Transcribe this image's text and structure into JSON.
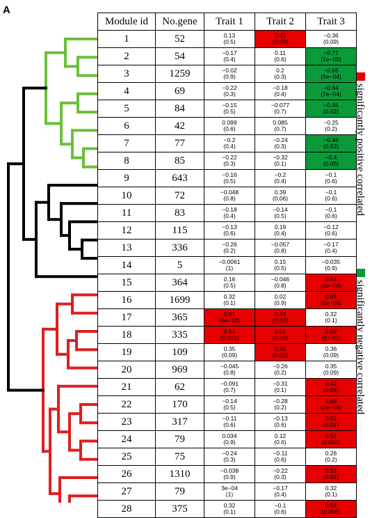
{
  "panel_label": "A",
  "colors": {
    "positive": "#e60000",
    "negative": "#0a9a3a",
    "cluster_green": "#6cbf3a",
    "cluster_black": "#000000",
    "cluster_red": "#e01e1e"
  },
  "headers": {
    "module_id": "Module id",
    "num_gene": "No.gene",
    "trait1": "Trait 1",
    "trait2": "Trait 2",
    "trait3": "Trait 3"
  },
  "legend": {
    "positive": "significantly positive correlated",
    "negative": "significantly negative correlated"
  },
  "rows": [
    {
      "id": "1",
      "genes": "52",
      "t1": {
        "c": "0.13",
        "p": "(0.5)",
        "sig": ""
      },
      "t2": {
        "c": "0.43",
        "p": "(0.04)",
        "sig": "pos"
      },
      "t3": {
        "c": "−0.36",
        "p": "(0.09)",
        "sig": ""
      }
    },
    {
      "id": "2",
      "genes": "54",
      "t1": {
        "c": "−0.17",
        "p": "(0.4)",
        "sig": ""
      },
      "t2": {
        "c": "0.11",
        "p": "(0.6)",
        "sig": ""
      },
      "t3": {
        "c": "−0.77",
        "p": "(1e−05)",
        "sig": "neg"
      }
    },
    {
      "id": "3",
      "genes": "1259",
      "t1": {
        "c": "−0.02",
        "p": "(0.9)",
        "sig": ""
      },
      "t2": {
        "c": "0.2",
        "p": "(0.3)",
        "sig": ""
      },
      "t3": {
        "c": "−0.65",
        "p": "(5e−04)",
        "sig": "neg"
      }
    },
    {
      "id": "4",
      "genes": "69",
      "t1": {
        "c": "−0.22",
        "p": "(0.3)",
        "sig": ""
      },
      "t2": {
        "c": "−0.18",
        "p": "(0.4)",
        "sig": ""
      },
      "t3": {
        "c": "−0.64",
        "p": "(7e−04)",
        "sig": "neg"
      }
    },
    {
      "id": "5",
      "genes": "84",
      "t1": {
        "c": "−0.15",
        "p": "(0.5)",
        "sig": ""
      },
      "t2": {
        "c": "−0.077",
        "p": "(0.7)",
        "sig": ""
      },
      "t3": {
        "c": "−0.46",
        "p": "(0.02)",
        "sig": "neg"
      }
    },
    {
      "id": "6",
      "genes": "42",
      "t1": {
        "c": "0.099",
        "p": "(0.6)",
        "sig": ""
      },
      "t2": {
        "c": "0.085",
        "p": "(0.7)",
        "sig": ""
      },
      "t3": {
        "c": "−0.25",
        "p": "(0.2)",
        "sig": ""
      }
    },
    {
      "id": "7",
      "genes": "77",
      "t1": {
        "c": "−0.2",
        "p": "(0.4)",
        "sig": ""
      },
      "t2": {
        "c": "−0.24",
        "p": "(0.3)",
        "sig": ""
      },
      "t3": {
        "c": "−0.46",
        "p": "(0.02)",
        "sig": "neg"
      }
    },
    {
      "id": "8",
      "genes": "85",
      "t1": {
        "c": "−0.22",
        "p": "(0.3)",
        "sig": ""
      },
      "t2": {
        "c": "−0.32",
        "p": "(0.1)",
        "sig": ""
      },
      "t3": {
        "c": "−0.4",
        "p": "(0.05)",
        "sig": "neg"
      }
    },
    {
      "id": "9",
      "genes": "643",
      "t1": {
        "c": "−0.16",
        "p": "(0.5)",
        "sig": ""
      },
      "t2": {
        "c": "−0.2",
        "p": "(0.4)",
        "sig": ""
      },
      "t3": {
        "c": "−0.1",
        "p": "(0.6)",
        "sig": ""
      }
    },
    {
      "id": "10",
      "genes": "72",
      "t1": {
        "c": "−0.048",
        "p": "(0.8)",
        "sig": ""
      },
      "t2": {
        "c": "0.39",
        "p": "(0.06)",
        "sig": ""
      },
      "t3": {
        "c": "−0.1",
        "p": "(0.6)",
        "sig": ""
      }
    },
    {
      "id": "11",
      "genes": "83",
      "t1": {
        "c": "−0.18",
        "p": "(0.4)",
        "sig": ""
      },
      "t2": {
        "c": "−0.14",
        "p": "(0.5)",
        "sig": ""
      },
      "t3": {
        "c": "−0.1",
        "p": "(0.6)",
        "sig": ""
      }
    },
    {
      "id": "12",
      "genes": "115",
      "t1": {
        "c": "−0.13",
        "p": "(0.6)",
        "sig": ""
      },
      "t2": {
        "c": "0.19",
        "p": "(0.4)",
        "sig": ""
      },
      "t3": {
        "c": "−0.12",
        "p": "(0.6)",
        "sig": ""
      }
    },
    {
      "id": "13",
      "genes": "336",
      "t1": {
        "c": "−0.26",
        "p": "(0.2)",
        "sig": ""
      },
      "t2": {
        "c": "−0.057",
        "p": "(0.8)",
        "sig": ""
      },
      "t3": {
        "c": "−0.17",
        "p": "(0.4)",
        "sig": ""
      }
    },
    {
      "id": "14",
      "genes": "5",
      "t1": {
        "c": "−0.0061",
        "p": "(1)",
        "sig": ""
      },
      "t2": {
        "c": "0.15",
        "p": "(0.5)",
        "sig": ""
      },
      "t3": {
        "c": "−0.035",
        "p": "(0.9)",
        "sig": ""
      }
    },
    {
      "id": "15",
      "genes": "364",
      "t1": {
        "c": "0.16",
        "p": "(0.5)",
        "sig": ""
      },
      "t2": {
        "c": "−0.046",
        "p": "(0.8)",
        "sig": ""
      },
      "t3": {
        "c": "0.64",
        "p": "(8e−04)",
        "sig": "pos"
      }
    },
    {
      "id": "16",
      "genes": "1699",
      "t1": {
        "c": "0.32",
        "p": "(0.1)",
        "sig": ""
      },
      "t2": {
        "c": "0.02",
        "p": "(0.9)",
        "sig": ""
      },
      "t3": {
        "c": "0.65",
        "p": "(6e−04)",
        "sig": "pos"
      }
    },
    {
      "id": "17",
      "genes": "365",
      "t1": {
        "c": "0.91",
        "p": "(6e−10)",
        "sig": "pos"
      },
      "t2": {
        "c": "0.43",
        "p": "(0.03)",
        "sig": "pos"
      },
      "t3": {
        "c": "0.32",
        "p": "(0.1)",
        "sig": ""
      }
    },
    {
      "id": "18",
      "genes": "335",
      "t1": {
        "c": "0.61",
        "p": "(0.001)",
        "sig": "pos"
      },
      "t2": {
        "c": "0.51",
        "p": "(0.01)",
        "sig": "pos"
      },
      "t3": {
        "c": "0.59",
        "p": "(0.003)",
        "sig": "pos"
      }
    },
    {
      "id": "19",
      "genes": "109",
      "t1": {
        "c": "0.35",
        "p": "(0.09)",
        "sig": ""
      },
      "t2": {
        "c": "0.46",
        "p": "(0.02)",
        "sig": "pos"
      },
      "t3": {
        "c": "0.36",
        "p": "(0.09)",
        "sig": ""
      }
    },
    {
      "id": "20",
      "genes": "969",
      "t1": {
        "c": "−0.045",
        "p": "(0.8)",
        "sig": ""
      },
      "t2": {
        "c": "−0.26",
        "p": "(0.2)",
        "sig": ""
      },
      "t3": {
        "c": "0.35",
        "p": "(0.09)",
        "sig": ""
      }
    },
    {
      "id": "21",
      "genes": "62",
      "t1": {
        "c": "−0.091",
        "p": "(0.7)",
        "sig": ""
      },
      "t2": {
        "c": "−0.31",
        "p": "(0.1)",
        "sig": ""
      },
      "t3": {
        "c": "0.42",
        "p": "(0.04)",
        "sig": "pos"
      }
    },
    {
      "id": "22",
      "genes": "170",
      "t1": {
        "c": "−0.14",
        "p": "(0.5)",
        "sig": ""
      },
      "t2": {
        "c": "−0.28",
        "p": "(0.2)",
        "sig": ""
      },
      "t3": {
        "c": "0.68",
        "p": "(2e−04)",
        "sig": "pos"
      }
    },
    {
      "id": "23",
      "genes": "317",
      "t1": {
        "c": "−0.11",
        "p": "(0.6)",
        "sig": ""
      },
      "t2": {
        "c": "−0.13",
        "p": "(0.6)",
        "sig": ""
      },
      "t3": {
        "c": "0.51",
        "p": "(0.01)",
        "sig": "pos"
      }
    },
    {
      "id": "24",
      "genes": "79",
      "t1": {
        "c": "0.034",
        "p": "(0.9)",
        "sig": ""
      },
      "t2": {
        "c": "0.12",
        "p": "(0.6)",
        "sig": ""
      },
      "t3": {
        "c": "0.57",
        "p": "(0.004)",
        "sig": "pos"
      }
    },
    {
      "id": "25",
      "genes": "75",
      "t1": {
        "c": "−0.24",
        "p": "(0.3)",
        "sig": ""
      },
      "t2": {
        "c": "−0.11",
        "p": "(0.6)",
        "sig": ""
      },
      "t3": {
        "c": "0.26",
        "p": "(0.2)",
        "sig": ""
      }
    },
    {
      "id": "26",
      "genes": "1310",
      "t1": {
        "c": "−0.038",
        "p": "(0.9)",
        "sig": ""
      },
      "t2": {
        "c": "−0.22",
        "p": "(0.3)",
        "sig": ""
      },
      "t3": {
        "c": "0.52",
        "p": "(0.01)",
        "sig": "pos"
      }
    },
    {
      "id": "27",
      "genes": "79",
      "t1": {
        "c": "3e−04",
        "p": "(1)",
        "sig": ""
      },
      "t2": {
        "c": "−0.17",
        "p": "(0.4)",
        "sig": ""
      },
      "t3": {
        "c": "0.32",
        "p": "(0.1)",
        "sig": ""
      }
    },
    {
      "id": "28",
      "genes": "375",
      "t1": {
        "c": "0.32",
        "p": "(0.1)",
        "sig": ""
      },
      "t2": {
        "c": "−0.1",
        "p": "(0.6)",
        "sig": ""
      },
      "t3": {
        "c": "0.54",
        "p": "(0.006)",
        "sig": "pos"
      }
    }
  ]
}
